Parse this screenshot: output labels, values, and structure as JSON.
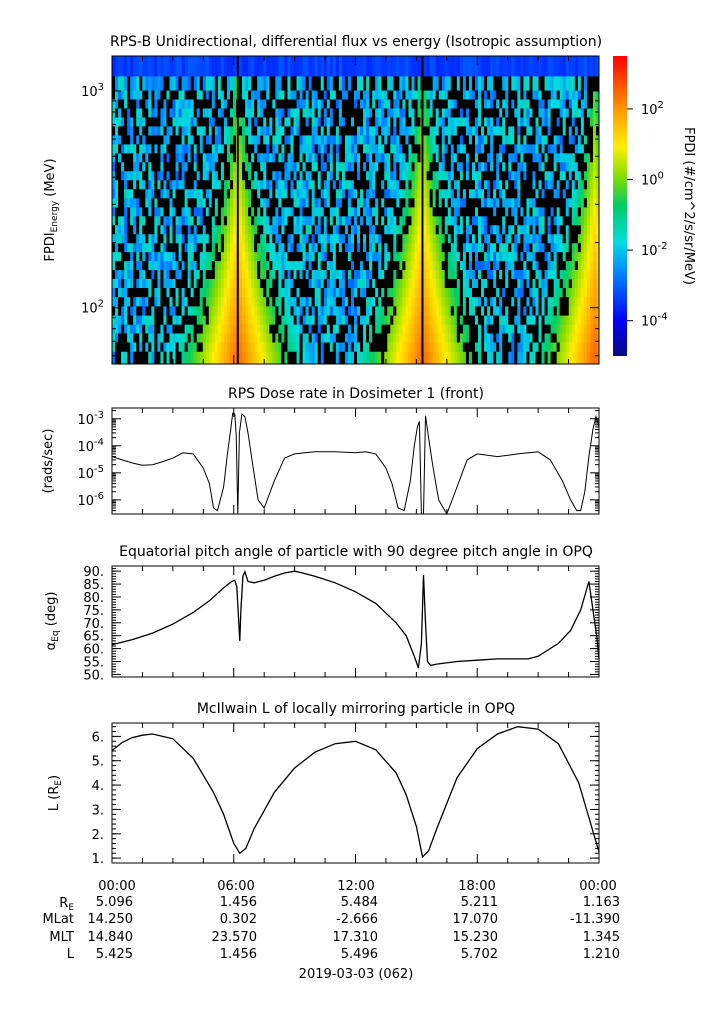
{
  "colors": {
    "line": "#000000",
    "fill_gap": "#000000"
  },
  "panels": [
    {
      "id": "spectrogram",
      "title": "RPS-B  Unidirectional, differential flux vs energy (Isotropic assumption)",
      "ylabel_main": "FPDI",
      "ylabel_sub": "Energy",
      "ylabel_unit": " (MeV)",
      "yticks": [
        {
          "mant": "10",
          "exp": "2",
          "value": 100
        },
        {
          "mant": "10",
          "exp": "3",
          "value": 1000
        }
      ],
      "colorbar_label": "FPDI (#/cm^2/s/sr/MeV)",
      "colorbar_ticks": [
        {
          "mant": "10",
          "exp": "-4",
          "log": -4
        },
        {
          "mant": "10",
          "exp": "-2",
          "log": -2
        },
        {
          "mant": "10",
          "exp": "0",
          "log": 0
        },
        {
          "mant": "10",
          "exp": "2",
          "log": 2
        }
      ]
    },
    {
      "id": "dose",
      "title": "RPS  Dose rate in Dosimeter 1 (front)",
      "ylabel": "(rads/sec)",
      "yticks": [
        {
          "mant": "10",
          "exp": "-6",
          "log": -6
        },
        {
          "mant": "10",
          "exp": "-5",
          "log": -5
        },
        {
          "mant": "10",
          "exp": "-4",
          "log": -4
        },
        {
          "mant": "10",
          "exp": "-3",
          "log": -3
        }
      ]
    },
    {
      "id": "pitch",
      "title": "Equatorial pitch angle of particle with 90 degree pitch angle in OPQ",
      "ylabel_main": "α",
      "ylabel_sub": "Eq",
      "ylabel_unit": " (deg)",
      "yticks": [
        "50.",
        "55.",
        "60.",
        "65.",
        "70.",
        "75.",
        "80.",
        "85.",
        "90."
      ]
    },
    {
      "id": "lshell",
      "title": "McIlwain L of locally mirroring particle in OPQ",
      "ylabel_main": "L (R",
      "ylabel_sub": "E",
      "ylabel_unit": ")",
      "yticks": [
        "1.",
        "2.",
        "3.",
        "4.",
        "5.",
        "6."
      ]
    }
  ],
  "x_axis": {
    "tick_labels": [
      "00:00",
      "06:00",
      "12:00",
      "18:00",
      "00:00"
    ],
    "date_label": "2019-03-03 (062)"
  },
  "ephemeris": {
    "rows": [
      {
        "label": "R",
        "label_sub": "E",
        "values": [
          "5.096",
          "1.456",
          "5.484",
          "5.211",
          "1.163"
        ]
      },
      {
        "label": "MLat",
        "label_sub": "",
        "values": [
          "14.250",
          "0.302",
          "-2.666",
          "17.070",
          "-11.390"
        ]
      },
      {
        "label": "MLT",
        "label_sub": "",
        "values": [
          "14.840",
          "23.570",
          "17.310",
          "15.230",
          "1.345"
        ]
      },
      {
        "label": "L",
        "label_sub": "",
        "values": [
          "5.425",
          "1.456",
          "5.496",
          "5.702",
          "1.210"
        ]
      }
    ]
  },
  "chart_data": [
    {
      "type": "heatmap",
      "title": "RPS-B  Unidirectional, differential flux vs energy (Isotropic assumption)",
      "xlabel": "",
      "ylabel": "FPDI Energy (MeV)",
      "x_range_hours": [
        0,
        24
      ],
      "y_scale": "log",
      "y_range_mev": [
        55,
        1450
      ],
      "energy_channels_mev": [
        60,
        66,
        73,
        80,
        88,
        97,
        107,
        118,
        130,
        143,
        157,
        173,
        190,
        209,
        230,
        253,
        278,
        306,
        337,
        371,
        408,
        449,
        494,
        543,
        597,
        657,
        723,
        795,
        875,
        962,
        1058,
        1300
      ],
      "color_scale": "log",
      "colorbar_range_log10": [
        -5.0,
        3.5
      ],
      "colorbar_label": "FPDI (#/cm^2/s/sr/MeV)",
      "color_peak_times_hours": [
        6.2,
        15.3,
        23.8
      ]
    },
    {
      "type": "line",
      "title": "RPS  Dose rate in Dosimeter 1 (front)",
      "xlabel": "",
      "ylabel": "(rads/sec)",
      "y_scale": "log",
      "ylim": [
        3e-07,
        0.0025
      ],
      "x_hours": [
        0,
        0.5,
        1,
        1.5,
        2,
        2.5,
        3,
        3.5,
        4,
        4.5,
        4.8,
        5.0,
        5.2,
        5.5,
        5.7,
        5.85,
        5.95,
        6.05,
        6.12,
        6.2,
        6.28,
        6.4,
        6.55,
        6.7,
        6.9,
        7.2,
        7.5,
        8.0,
        8.5,
        9,
        9.5,
        10,
        11,
        12,
        12.5,
        13,
        13.5,
        13.8,
        14.1,
        14.4,
        14.7,
        14.9,
        15.05,
        15.15,
        15.25,
        15.35,
        15.45,
        15.6,
        15.8,
        16.1,
        16.5,
        17,
        17.5,
        18,
        19,
        20,
        21,
        21.6,
        22.2,
        22.6,
        22.9,
        23.1,
        23.3,
        23.5,
        23.7,
        23.85,
        24
      ],
      "values": [
        4e-05,
        3e-05,
        2.3e-05,
        1.9e-05,
        2e-05,
        2.6e-05,
        3.5e-05,
        5.5e-05,
        5e-05,
        1.5e-05,
        4e-06,
        5e-07,
        4e-07,
        3e-06,
        6e-05,
        0.0004,
        0.0016,
        0.0015,
        0.00025,
        3e-07,
        0.0003,
        0.0015,
        0.0012,
        0.0003,
        3e-05,
        1e-06,
        5e-07,
        5e-06,
        3.5e-05,
        5e-05,
        5.5e-05,
        6e-05,
        6e-05,
        5.5e-05,
        6e-05,
        5e-05,
        1.5e-05,
        4e-06,
        5e-07,
        4e-07,
        5e-06,
        0.0001,
        0.0005,
        0.0008,
        3e-07,
        3e-07,
        0.0013,
        0.0002,
        2e-05,
        1e-06,
        3e-07,
        3e-06,
        3e-05,
        5e-05,
        4e-05,
        5e-05,
        6e-05,
        3e-05,
        5e-06,
        1e-06,
        4e-07,
        4e-07,
        2e-06,
        4e-05,
        0.0004,
        0.0012,
        0.0005
      ]
    },
    {
      "type": "line",
      "title": "Equatorial pitch angle of particle with 90 degree pitch angle in OPQ",
      "xlabel": "",
      "ylabel": "αEq (deg)",
      "ylim": [
        49,
        92
      ],
      "x_hours": [
        0,
        1,
        2,
        3,
        4,
        4.8,
        5.5,
        5.9,
        6.05,
        6.15,
        6.25,
        6.3,
        6.35,
        6.45,
        6.55,
        6.7,
        7.0,
        7.5,
        8.0,
        8.5,
        9.0,
        9.3,
        10,
        11,
        12,
        13,
        14,
        14.5,
        14.9,
        15.1,
        15.25,
        15.35,
        15.45,
        15.55,
        15.7,
        16,
        17,
        18,
        19,
        20,
        20.5,
        21,
        22,
        22.6,
        23.1,
        23.5,
        23.9,
        24
      ],
      "values": [
        61.5,
        63.5,
        66,
        69.5,
        74,
        78.5,
        83.5,
        86,
        86.5,
        84,
        70,
        63,
        75,
        88,
        89.8,
        86,
        85.5,
        86.5,
        88,
        89.3,
        90,
        89.5,
        88,
        85.5,
        82,
        77.5,
        70,
        65,
        57,
        52.5,
        62,
        88.5,
        70,
        55,
        53.5,
        54,
        55,
        55.5,
        56,
        56,
        56,
        57,
        62,
        67,
        75,
        86,
        64,
        56
      ]
    },
    {
      "type": "line",
      "title": "McIlwain L of locally mirroring particle in OPQ",
      "xlabel": "",
      "ylabel": "L (RE)",
      "ylim": [
        0.8,
        6.55
      ],
      "x_hours": [
        0,
        0.5,
        1,
        1.5,
        2.0,
        3,
        4,
        5,
        5.5,
        6.0,
        6.3,
        6.6,
        7,
        8,
        9,
        10,
        11,
        12,
        13,
        14,
        14.5,
        15.0,
        15.3,
        15.6,
        16,
        17,
        18,
        19,
        20,
        21,
        22,
        23,
        24
      ],
      "values": [
        5.42,
        5.75,
        5.95,
        6.05,
        6.1,
        5.9,
        5.1,
        3.7,
        2.8,
        1.6,
        1.2,
        1.4,
        2.2,
        3.7,
        4.7,
        5.35,
        5.7,
        5.8,
        5.45,
        4.5,
        3.6,
        2.3,
        1.05,
        1.3,
        2.2,
        4.3,
        5.5,
        6.1,
        6.4,
        6.3,
        5.7,
        4.1,
        1.25
      ]
    }
  ]
}
